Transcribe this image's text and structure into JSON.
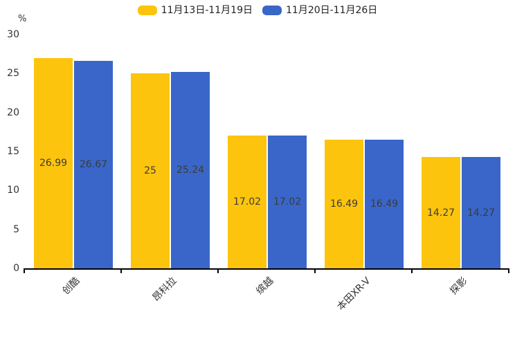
{
  "colors": {
    "series1": "#FCC40D",
    "series2": "#3966C8",
    "axis": "#000000",
    "value_label": "#3b3b3b",
    "tick_label": "#333333"
  },
  "legend": [
    {
      "label": "11月13日-11月19日",
      "color_key": "series1"
    },
    {
      "label": "11月20日-11月26日",
      "color_key": "series2"
    }
  ],
  "chart_data": {
    "type": "bar",
    "title": "",
    "categories": [
      "创酷",
      "昂科拉",
      "缤越",
      "本田XR-V",
      "探影"
    ],
    "series": [
      {
        "name": "11月13日-11月19日",
        "values": [
          26.99,
          25,
          17.02,
          16.49,
          14.27
        ]
      },
      {
        "name": "11月20日-11月26日",
        "values": [
          26.67,
          25.24,
          17.02,
          16.49,
          14.27
        ]
      }
    ],
    "xlabel": "",
    "ylabel": "%",
    "ylim": [
      0,
      30
    ],
    "yticks": [
      0,
      5,
      10,
      15,
      20,
      25,
      30
    ],
    "grid": false,
    "legend_position": "top-center",
    "value_labels": "inside-middle",
    "x_label_rotation": 45
  }
}
